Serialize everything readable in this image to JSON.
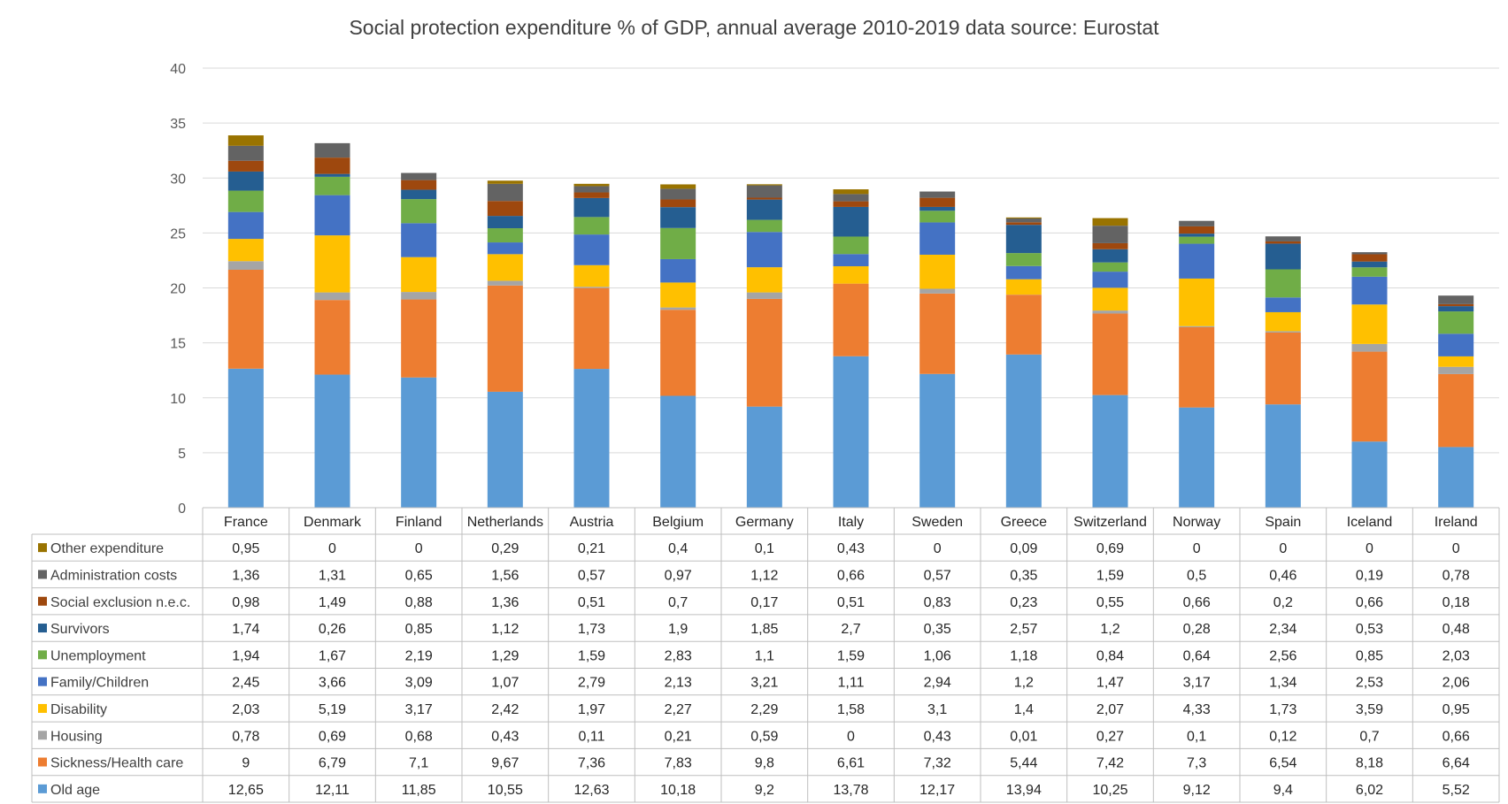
{
  "chart_data": {
    "type": "bar",
    "stacked": true,
    "title": "Social protection expenditure % of GDP, annual average 2010-2019 data source: Eurostat",
    "xlabel": "",
    "ylabel": "",
    "ylim": [
      0,
      40
    ],
    "yticks": [
      "0",
      "5",
      "10",
      "15",
      "20",
      "25",
      "30",
      "35",
      "40"
    ],
    "grid": true,
    "legend": "data-table-left",
    "categories": [
      "France",
      "Denmark",
      "Finland",
      "Netherlands",
      "Austria",
      "Belgium",
      "Germany",
      "Italy",
      "Sweden",
      "Greece",
      "Switzerland",
      "Norway",
      "Spain",
      "Iceland",
      "Ireland"
    ],
    "series": [
      {
        "name": "Old age",
        "color": "#5b9bd5",
        "values": [
          12.65,
          12.11,
          11.85,
          10.55,
          12.63,
          10.18,
          9.2,
          13.78,
          12.17,
          13.94,
          10.25,
          9.12,
          9.4,
          6.02,
          5.52
        ],
        "labels": [
          "12,65",
          "12,11",
          "11,85",
          "10,55",
          "12,63",
          "10,18",
          "9,2",
          "13,78",
          "12,17",
          "13,94",
          "10,25",
          "9,12",
          "9,4",
          "6,02",
          "5,52"
        ]
      },
      {
        "name": "Sickness/Health care",
        "color": "#ed7d31",
        "values": [
          9,
          6.79,
          7.1,
          9.67,
          7.36,
          7.83,
          9.8,
          6.61,
          7.32,
          5.44,
          7.42,
          7.3,
          6.54,
          8.18,
          6.64
        ],
        "labels": [
          "9",
          "6,79",
          "7,1",
          "9,67",
          "7,36",
          "7,83",
          "9,8",
          "6,61",
          "7,32",
          "5,44",
          "7,42",
          "7,3",
          "6,54",
          "8,18",
          "6,64"
        ]
      },
      {
        "name": "Housing",
        "color": "#a5a5a5",
        "values": [
          0.78,
          0.69,
          0.68,
          0.43,
          0.11,
          0.21,
          0.59,
          0,
          0.43,
          0.01,
          0.27,
          0.1,
          0.12,
          0.7,
          0.66
        ],
        "labels": [
          "0,78",
          "0,69",
          "0,68",
          "0,43",
          "0,11",
          "0,21",
          "0,59",
          "0",
          "0,43",
          "0,01",
          "0,27",
          "0,1",
          "0,12",
          "0,7",
          "0,66"
        ]
      },
      {
        "name": "Disability",
        "color": "#ffc000",
        "values": [
          2.03,
          5.19,
          3.17,
          2.42,
          1.97,
          2.27,
          2.29,
          1.58,
          3.1,
          1.4,
          2.07,
          4.33,
          1.73,
          3.59,
          0.95
        ],
        "labels": [
          "2,03",
          "5,19",
          "3,17",
          "2,42",
          "1,97",
          "2,27",
          "2,29",
          "1,58",
          "3,1",
          "1,4",
          "2,07",
          "4,33",
          "1,73",
          "3,59",
          "0,95"
        ]
      },
      {
        "name": "Family/Children",
        "color": "#4472c4",
        "values": [
          2.45,
          3.66,
          3.09,
          1.07,
          2.79,
          2.13,
          3.21,
          1.11,
          2.94,
          1.2,
          1.47,
          3.17,
          1.34,
          2.53,
          2.06
        ],
        "labels": [
          "2,45",
          "3,66",
          "3,09",
          "1,07",
          "2,79",
          "2,13",
          "3,21",
          "1,11",
          "2,94",
          "1,2",
          "1,47",
          "3,17",
          "1,34",
          "2,53",
          "2,06"
        ]
      },
      {
        "name": "Unemployment",
        "color": "#70ad47",
        "values": [
          1.94,
          1.67,
          2.19,
          1.29,
          1.59,
          2.83,
          1.1,
          1.59,
          1.06,
          1.18,
          0.84,
          0.64,
          2.56,
          0.85,
          2.03
        ],
        "labels": [
          "1,94",
          "1,67",
          "2,19",
          "1,29",
          "1,59",
          "2,83",
          "1,1",
          "1,59",
          "1,06",
          "1,18",
          "0,84",
          "0,64",
          "2,56",
          "0,85",
          "2,03"
        ]
      },
      {
        "name": "Survivors",
        "color": "#255e91",
        "values": [
          1.74,
          0.26,
          0.85,
          1.12,
          1.73,
          1.9,
          1.85,
          2.7,
          0.35,
          2.57,
          1.2,
          0.28,
          2.34,
          0.53,
          0.48
        ],
        "labels": [
          "1,74",
          "0,26",
          "0,85",
          "1,12",
          "1,73",
          "1,9",
          "1,85",
          "2,7",
          "0,35",
          "2,57",
          "1,2",
          "0,28",
          "2,34",
          "0,53",
          "0,48"
        ]
      },
      {
        "name": "Social exclusion n.e.c.",
        "color": "#9e480e",
        "values": [
          0.98,
          1.49,
          0.88,
          1.36,
          0.51,
          0.7,
          0.17,
          0.51,
          0.83,
          0.23,
          0.55,
          0.66,
          0.2,
          0.66,
          0.18
        ],
        "labels": [
          "0,98",
          "1,49",
          "0,88",
          "1,36",
          "0,51",
          "0,7",
          "0,17",
          "0,51",
          "0,83",
          "0,23",
          "0,55",
          "0,66",
          "0,2",
          "0,66",
          "0,18"
        ]
      },
      {
        "name": "Administration costs",
        "color": "#636363",
        "values": [
          1.36,
          1.31,
          0.65,
          1.56,
          0.57,
          0.97,
          1.12,
          0.66,
          0.57,
          0.35,
          1.59,
          0.5,
          0.46,
          0.19,
          0.78
        ],
        "labels": [
          "1,36",
          "1,31",
          "0,65",
          "1,56",
          "0,57",
          "0,97",
          "1,12",
          "0,66",
          "0,57",
          "0,35",
          "1,59",
          "0,5",
          "0,46",
          "0,19",
          "0,78"
        ]
      },
      {
        "name": "Other expenditure",
        "color": "#997300",
        "values": [
          0.95,
          0,
          0,
          0.29,
          0.21,
          0.4,
          0.1,
          0.43,
          0,
          0.09,
          0.69,
          0,
          0,
          0,
          0
        ],
        "labels": [
          "0,95",
          "0",
          "0",
          "0,29",
          "0,21",
          "0,4",
          "0,1",
          "0,43",
          "0",
          "0,09",
          "0,69",
          "0",
          "0",
          "0",
          "0"
        ]
      }
    ]
  }
}
